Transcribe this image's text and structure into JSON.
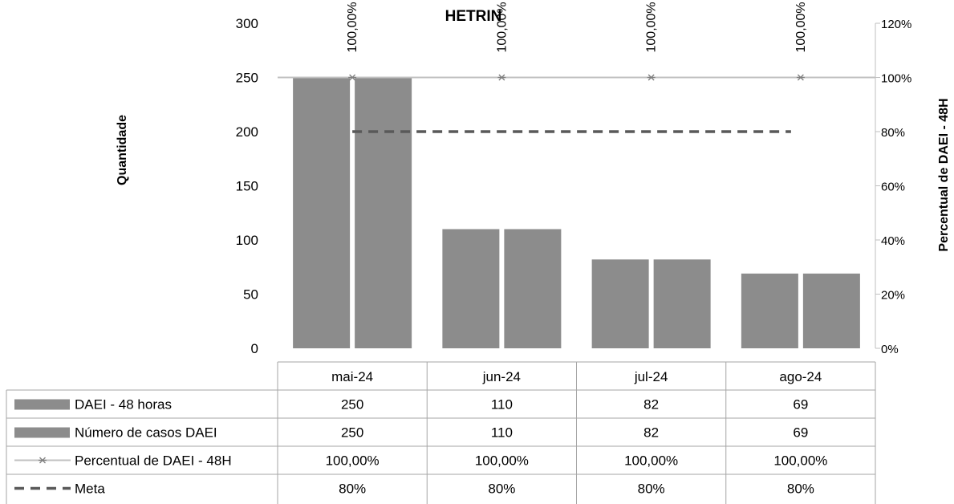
{
  "chart_data": {
    "type": "bar",
    "title": "HETRIN",
    "ylabel": "Quantidade",
    "y2label": "Percentual de DAEI - 48H",
    "ylim": [
      0,
      300
    ],
    "y2lim": [
      0,
      1.2
    ],
    "yticks": [
      "0",
      "50",
      "100",
      "150",
      "200",
      "250",
      "300"
    ],
    "y2ticks": [
      "0%",
      "20%",
      "40%",
      "60%",
      "80%",
      "100%",
      "120%"
    ],
    "categories": [
      "mai-24",
      "jun-24",
      "jul-24",
      "ago-24"
    ],
    "grid": false,
    "legend": "data-table",
    "series": [
      {
        "name": "DAEI - 48 horas",
        "kind": "bar",
        "axis": "primary",
        "color": "#8c8c8c",
        "values": [
          250,
          110,
          82,
          69
        ],
        "labels": [
          "250",
          "110",
          "82",
          "69"
        ]
      },
      {
        "name": "Número de casos DAEI",
        "kind": "bar",
        "axis": "primary",
        "color": "#8c8c8c",
        "values": [
          250,
          110,
          82,
          69
        ],
        "labels": [
          "250",
          "110",
          "82",
          "69"
        ]
      },
      {
        "name": "Percentual de DAEI - 48H",
        "kind": "line",
        "axis": "secondary",
        "color": "#c0c0c0",
        "marker": "asterisk",
        "values": [
          1.0,
          1.0,
          1.0,
          1.0
        ],
        "labels": [
          "100,00%",
          "100,00%",
          "100,00%",
          "100,00%"
        ]
      },
      {
        "name": "Meta",
        "kind": "line",
        "axis": "secondary",
        "color": "#595959",
        "dash": "dashed",
        "values": [
          0.8,
          0.8,
          0.8,
          0.8
        ],
        "labels": [
          "80%",
          "80%",
          "80%",
          "80%"
        ]
      }
    ]
  }
}
